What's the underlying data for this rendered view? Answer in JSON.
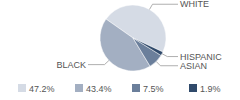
{
  "chart_data": {
    "type": "pie",
    "categories": [
      "WHITE",
      "BLACK",
      "ASIAN",
      "HISPANIC"
    ],
    "values": [
      47.2,
      43.4,
      7.5,
      1.9
    ],
    "value_labels": [
      "47.2%",
      "43.4%",
      "7.5%",
      "1.9%"
    ],
    "colors": [
      "#d5dbe5",
      "#a3afc2",
      "#6b7f9b",
      "#304a6b"
    ],
    "legend": "bottom"
  }
}
